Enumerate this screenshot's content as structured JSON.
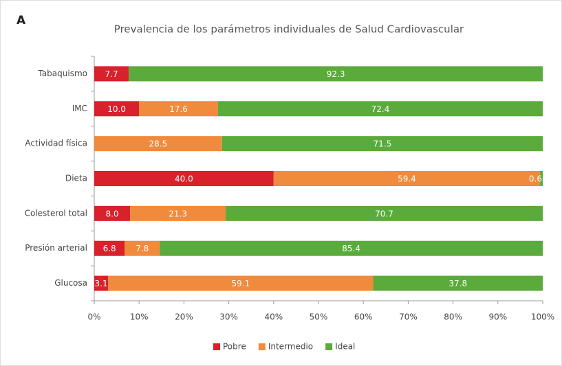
{
  "panel_label": "A",
  "chart_data": {
    "type": "stacked-barh",
    "title": "Prevalencia de los parámetros individuales de Salud Cardiovascular",
    "categories": [
      "Tabaquismo",
      "IMC",
      "Actividad física",
      "Dieta",
      "Colesterol total",
      "Presión arterial",
      "Glucosa"
    ],
    "series": [
      {
        "name": "Pobre",
        "color": "#d9212b",
        "values": [
          7.7,
          10.0,
          null,
          40.0,
          8.0,
          6.8,
          3.1
        ],
        "value_labels": [
          "7.7",
          "10.0",
          null,
          "40.0",
          "8.0",
          "6.8",
          "3.1"
        ]
      },
      {
        "name": "Intermedio",
        "color": "#f08a3c",
        "values": [
          null,
          17.6,
          28.5,
          59.4,
          21.3,
          7.8,
          59.1
        ],
        "value_labels": [
          null,
          "17.6",
          "28.5",
          "59.4",
          "21.3",
          "7.8",
          "59.1"
        ]
      },
      {
        "name": "Ideal",
        "color": "#5bab3c",
        "values": [
          92.3,
          72.4,
          71.5,
          0.6,
          70.7,
          85.4,
          37.8
        ],
        "value_labels": [
          "92.3",
          "72.4",
          "71.5",
          "0.6",
          "70.7",
          "85.4",
          "37.8"
        ]
      }
    ],
    "xlim": [
      0,
      100
    ],
    "xticks": [
      {
        "value": 0,
        "label": "0%"
      },
      {
        "value": 10,
        "label": "10%"
      },
      {
        "value": 20,
        "label": "20%"
      },
      {
        "value": 30,
        "label": "30%"
      },
      {
        "value": 40,
        "label": "40%"
      },
      {
        "value": 50,
        "label": "50%"
      },
      {
        "value": 60,
        "label": "60%"
      },
      {
        "value": 70,
        "label": "70%"
      },
      {
        "value": 80,
        "label": "80%"
      },
      {
        "value": 90,
        "label": "90%"
      },
      {
        "value": 100,
        "label": "100%"
      }
    ],
    "legend": "bottom"
  }
}
